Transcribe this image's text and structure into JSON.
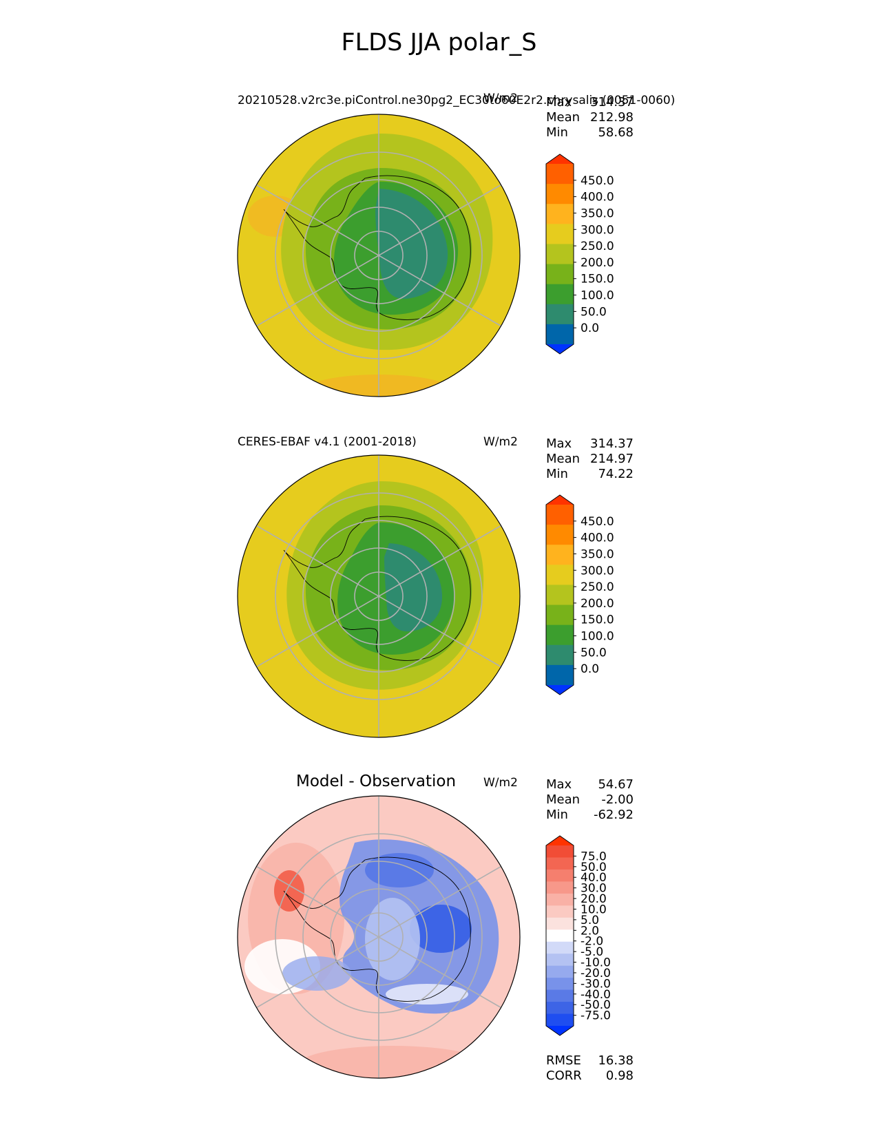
{
  "figure": {
    "title": "FLDS JJA polar_S"
  },
  "panels": [
    {
      "title_left": "20210528.v2rc3e.piControl.ne30pg2_EC30to60E2r2.chrysalis (0051-0060)",
      "title_right": "W/m2",
      "stats": [
        {
          "label": "Max",
          "value": "314.37"
        },
        {
          "label": "Mean",
          "value": "212.98"
        },
        {
          "label": "Min",
          "value": "58.68"
        }
      ],
      "colorbar": {
        "ticks": [
          "450.0",
          "400.0",
          "350.0",
          "300.0",
          "250.0",
          "200.0",
          "150.0",
          "100.0",
          "50.0",
          "0.0"
        ],
        "colors": [
          "#0033ff",
          "#0066aa",
          "#2e8b6e",
          "#3c9e2e",
          "#78b21a",
          "#b4c41e",
          "#e6cc1e",
          "#ffb31e",
          "#ff8a00",
          "#ff6000",
          "#ff3300"
        ]
      }
    },
    {
      "title_left": "CERES-EBAF v4.1 (2001-2018)",
      "title_right": "W/m2",
      "stats": [
        {
          "label": "Max",
          "value": "314.37"
        },
        {
          "label": "Mean",
          "value": "214.97"
        },
        {
          "label": "Min",
          "value": "74.22"
        }
      ],
      "colorbar": {
        "ticks": [
          "450.0",
          "400.0",
          "350.0",
          "300.0",
          "250.0",
          "200.0",
          "150.0",
          "100.0",
          "50.0",
          "0.0"
        ],
        "colors": [
          "#0033ff",
          "#0066aa",
          "#2e8b6e",
          "#3c9e2e",
          "#78b21a",
          "#b4c41e",
          "#e6cc1e",
          "#ffb31e",
          "#ff8a00",
          "#ff6000",
          "#ff3300"
        ]
      }
    },
    {
      "title_center": "Model - Observation",
      "title_right": "W/m2",
      "stats": [
        {
          "label": "Max",
          "value": "54.67"
        },
        {
          "label": "Mean",
          "value": "-2.00"
        },
        {
          "label": "Min",
          "value": "-62.92"
        }
      ],
      "colorbar": {
        "ticks": [
          "75.0",
          "50.0",
          "40.0",
          "30.0",
          "20.0",
          "10.0",
          "5.0",
          "2.0",
          "-2.0",
          "-5.0",
          "-10.0",
          "-20.0",
          "-30.0",
          "-40.0",
          "-50.0",
          "-75.0"
        ],
        "colors": [
          "#0033ff",
          "#1f4ef0",
          "#3d64e6",
          "#5a7ae6",
          "#7892ea",
          "#96aaee",
          "#b4c2f2",
          "#d2daf8",
          "#ffffff",
          "#fbe2de",
          "#fbcac2",
          "#f9b1a6",
          "#f7988a",
          "#f57f6e",
          "#f36652",
          "#f14d36",
          "#ff3300"
        ]
      },
      "metrics": [
        {
          "label": "RMSE",
          "value": "16.38"
        },
        {
          "label": "CORR",
          "value": "0.98"
        }
      ]
    }
  ]
}
